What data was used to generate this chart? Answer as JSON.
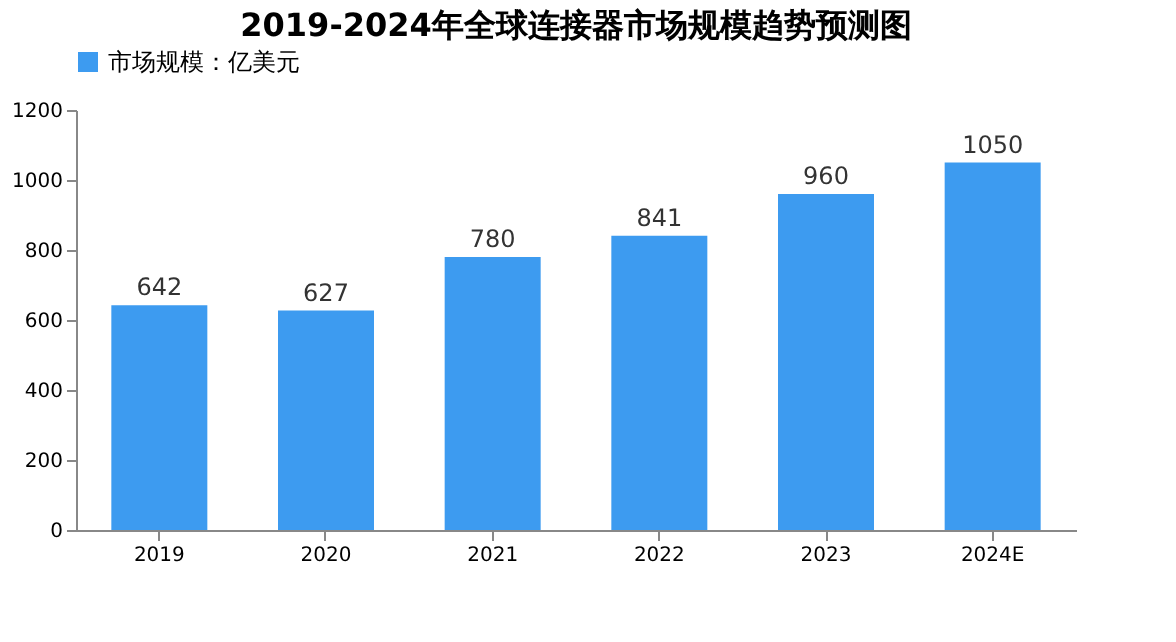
{
  "chart_data": {
    "type": "bar",
    "title": "2019-2024年全球连接器市场规模趋势预测图",
    "categories": [
      "2019",
      "2020",
      "2021",
      "2022",
      "2023",
      "2024E"
    ],
    "series": [
      {
        "name": "市场规模：亿美元",
        "color": "#3d9bf0",
        "values": [
          642,
          627,
          780,
          841,
          960,
          1050
        ]
      }
    ],
    "ylim": [
      0,
      1200
    ],
    "yticks": [
      0,
      200,
      400,
      600,
      800,
      1000,
      1200
    ],
    "data_labels": true,
    "legend": "top",
    "grid": false
  }
}
